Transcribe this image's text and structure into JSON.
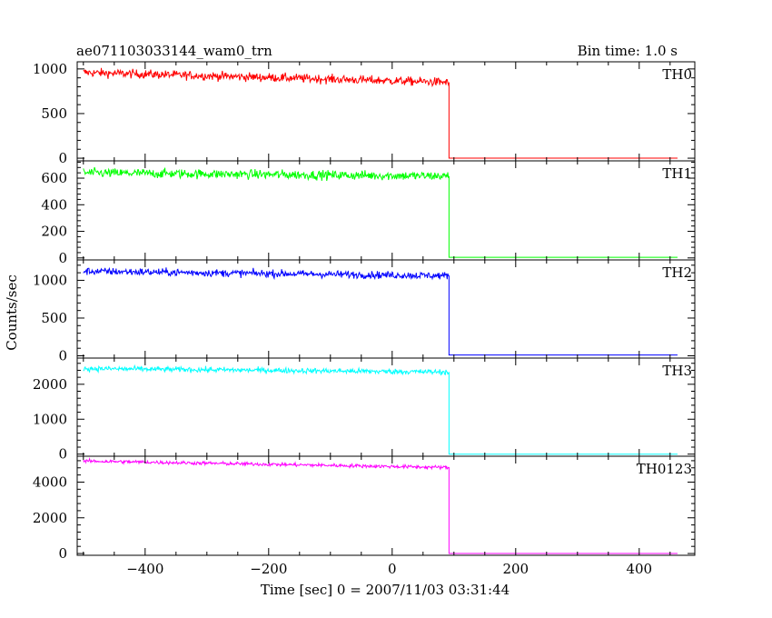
{
  "header": {
    "title": "ae071103033144_wam0_trn",
    "bin_time": "Bin time: 1.0 s"
  },
  "chart_data": {
    "type": "line",
    "xlabel": "Time [sec] 0 = 2007/11/03 03:31:44",
    "ylabel": "Counts/sec",
    "xlim": [
      -510,
      490
    ],
    "x_ticks": [
      "−400",
      "−200",
      "0",
      "200",
      "400"
    ],
    "x_tick_values": [
      -400,
      -200,
      0,
      200,
      400
    ],
    "step_time": 92,
    "data_start": -500,
    "data_end": 462,
    "panels": [
      {
        "name": "TH0",
        "color": "#ff0000",
        "ylim": [
          -30,
          1080
        ],
        "yticks": [
          0,
          500,
          1000
        ],
        "ytick_labels": [
          "0",
          "500",
          "1000"
        ],
        "level_start": 960,
        "level_end": 850,
        "noise": 35,
        "after": 0
      },
      {
        "name": "TH1",
        "color": "#00ff00",
        "ylim": [
          -15,
          730
        ],
        "yticks": [
          0,
          200,
          400,
          600
        ],
        "ytick_labels": [
          "0",
          "200",
          "400",
          "600"
        ],
        "level_start": 640,
        "level_end": 615,
        "noise": 25,
        "after": 5
      },
      {
        "name": "TH2",
        "color": "#0000ff",
        "ylim": [
          -30,
          1270
        ],
        "yticks": [
          0,
          500,
          1000
        ],
        "ytick_labels": [
          "0",
          "500",
          "1000"
        ],
        "level_start": 1120,
        "level_end": 1060,
        "noise": 35,
        "after": 10
      },
      {
        "name": "TH3",
        "color": "#00ffff",
        "ylim": [
          -60,
          2750
        ],
        "yticks": [
          0,
          1000,
          2000
        ],
        "ytick_labels": [
          "0",
          "1000",
          "2000"
        ],
        "level_start": 2450,
        "level_end": 2350,
        "noise": 55,
        "after": 0
      },
      {
        "name": "TH0123",
        "color": "#ff00ff",
        "ylim": [
          -100,
          5450
        ],
        "yticks": [
          0,
          2000,
          4000
        ],
        "ytick_labels": [
          "0",
          "2000",
          "4000"
        ],
        "level_start": 5180,
        "level_end": 4820,
        "noise": 70,
        "after": 5
      }
    ]
  }
}
